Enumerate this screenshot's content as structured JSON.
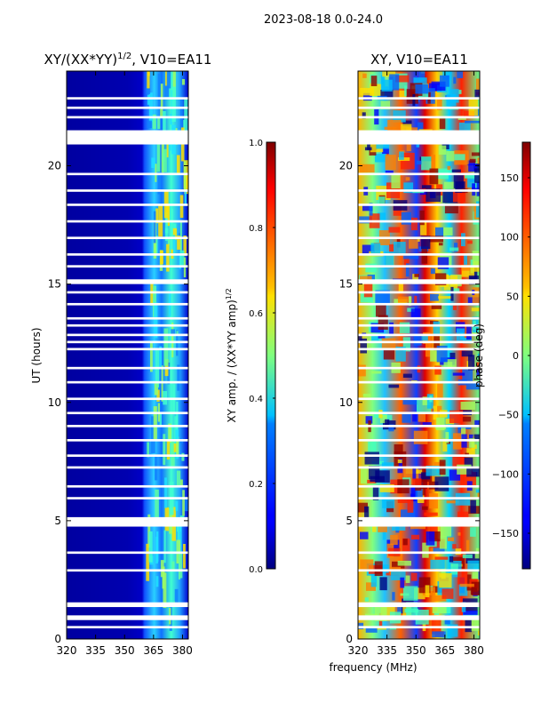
{
  "suptitle": "2023-08-18 0.0-24.0",
  "chart_data": [
    {
      "type": "heatmap",
      "title": "XY/(XX*YY)^1/2, V10=EA11",
      "title_main": "XY/(XX*YY)",
      "title_sup": "1/2",
      "title_tail": ", V10=EA11",
      "xlabel": "",
      "ylabel": "UT (hours)",
      "xlim": [
        320,
        383
      ],
      "ylim": [
        0,
        24
      ],
      "xticks": [
        "320",
        "335",
        "350",
        "365",
        "380"
      ],
      "xtick_values": [
        320,
        335,
        350,
        365,
        380
      ],
      "yticks": [
        "0",
        "5",
        "10",
        "15",
        "20"
      ],
      "ytick_values": [
        0,
        5,
        10,
        15,
        20
      ],
      "colorbar": {
        "label": "XY amp. / (XX*YY amp)^1/2",
        "label_main": "XY amp. / (XX*YY amp)",
        "label_sup": "1/2",
        "range": [
          0.0,
          1.0
        ],
        "ticks": [
          "0.0",
          "0.2",
          "0.4",
          "0.6",
          "0.8",
          "1.0"
        ],
        "tick_values": [
          0.0,
          0.2,
          0.4,
          0.6,
          0.8,
          1.0
        ],
        "colormap": "jet"
      },
      "description": "Mostly low amplitude (~0.05) below 360 MHz; higher amplitude bands (0.3-0.7) between ~361 and 381 MHz; white gaps indicate flagged times"
    },
    {
      "type": "heatmap",
      "title": "XY, V10=EA11",
      "xlabel": "frequency (MHz)",
      "ylabel": "",
      "xlim": [
        320,
        383
      ],
      "ylim": [
        0,
        24
      ],
      "xticks": [
        "320",
        "335",
        "350",
        "365",
        "380"
      ],
      "xtick_values": [
        320,
        335,
        350,
        365,
        380
      ],
      "yticks": [
        "0",
        "5",
        "10",
        "15",
        "20"
      ],
      "ytick_values": [
        0,
        5,
        10,
        15,
        20
      ],
      "colorbar": {
        "label": "phase (deg)",
        "range": [
          -180,
          180
        ],
        "ticks": [
          "−150",
          "−100",
          "−50",
          "0",
          "50",
          "100",
          "150"
        ],
        "tick_values": [
          -150,
          -100,
          -50,
          0,
          50,
          100,
          150
        ],
        "colormap": "jet"
      },
      "description": "Phase varies widely from -180 to 180 degrees across frequency and time; white gaps indicate flagged times"
    }
  ],
  "flag_gaps_hours": [
    [
      0.45,
      0.55
    ],
    [
      0.8,
      1.0
    ],
    [
      1.35,
      1.55
    ],
    [
      2.85,
      2.95
    ],
    [
      3.6,
      3.7
    ],
    [
      4.75,
      5.15
    ],
    [
      5.9,
      6.0
    ],
    [
      6.4,
      6.5
    ],
    [
      7.2,
      7.3
    ],
    [
      7.7,
      7.8
    ],
    [
      8.35,
      8.45
    ],
    [
      8.95,
      9.05
    ],
    [
      9.5,
      9.6
    ],
    [
      10.1,
      10.2
    ],
    [
      10.8,
      10.9
    ],
    [
      11.4,
      11.5
    ],
    [
      12.2,
      12.3
    ],
    [
      12.5,
      12.6
    ],
    [
      12.8,
      12.9
    ],
    [
      13.2,
      13.3
    ],
    [
      13.5,
      13.6
    ],
    [
      14.1,
      14.2
    ],
    [
      14.6,
      14.7
    ],
    [
      15.0,
      15.2
    ],
    [
      15.7,
      15.8
    ],
    [
      16.2,
      16.3
    ],
    [
      16.9,
      17.0
    ],
    [
      17.6,
      17.7
    ],
    [
      18.3,
      18.4
    ],
    [
      18.9,
      19.0
    ],
    [
      19.6,
      19.7
    ],
    [
      20.9,
      21.5
    ],
    [
      22.0,
      22.1
    ],
    [
      22.4,
      22.5
    ],
    [
      22.8,
      22.9
    ]
  ]
}
